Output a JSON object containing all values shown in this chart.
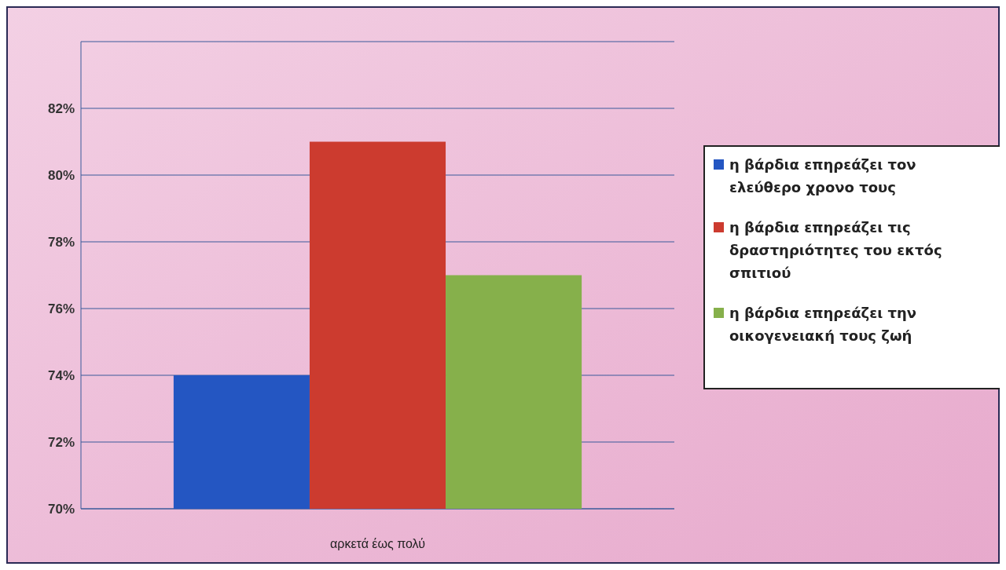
{
  "chart_data": {
    "type": "bar",
    "categories": [
      "αρκετά έως πολύ"
    ],
    "series": [
      {
        "name": "η βάρδια επηρεάζει τον ελεύθερο χρονο τους",
        "color": "#2456c2",
        "values": [
          74
        ]
      },
      {
        "name": "η βάρδια επηρεάζει τις δραστηριότητες του εκτός σπιτιού",
        "color": "#cc3b2f",
        "values": [
          81
        ]
      },
      {
        "name": "η βάρδια επηρεάζει την οικογενειακή τους ζωή",
        "color": "#86b04b",
        "values": [
          77
        ]
      }
    ],
    "ylim": [
      70,
      84
    ],
    "yticks": [
      {
        "value": 70,
        "label": "70%"
      },
      {
        "value": 72,
        "label": "72%"
      },
      {
        "value": 74,
        "label": "74%"
      },
      {
        "value": 76,
        "label": "76%"
      },
      {
        "value": 78,
        "label": "78%"
      },
      {
        "value": 80,
        "label": "80%"
      },
      {
        "value": 82,
        "label": "82%"
      },
      {
        "value": 84,
        "label": null
      }
    ],
    "grid": true,
    "legend": "right"
  }
}
